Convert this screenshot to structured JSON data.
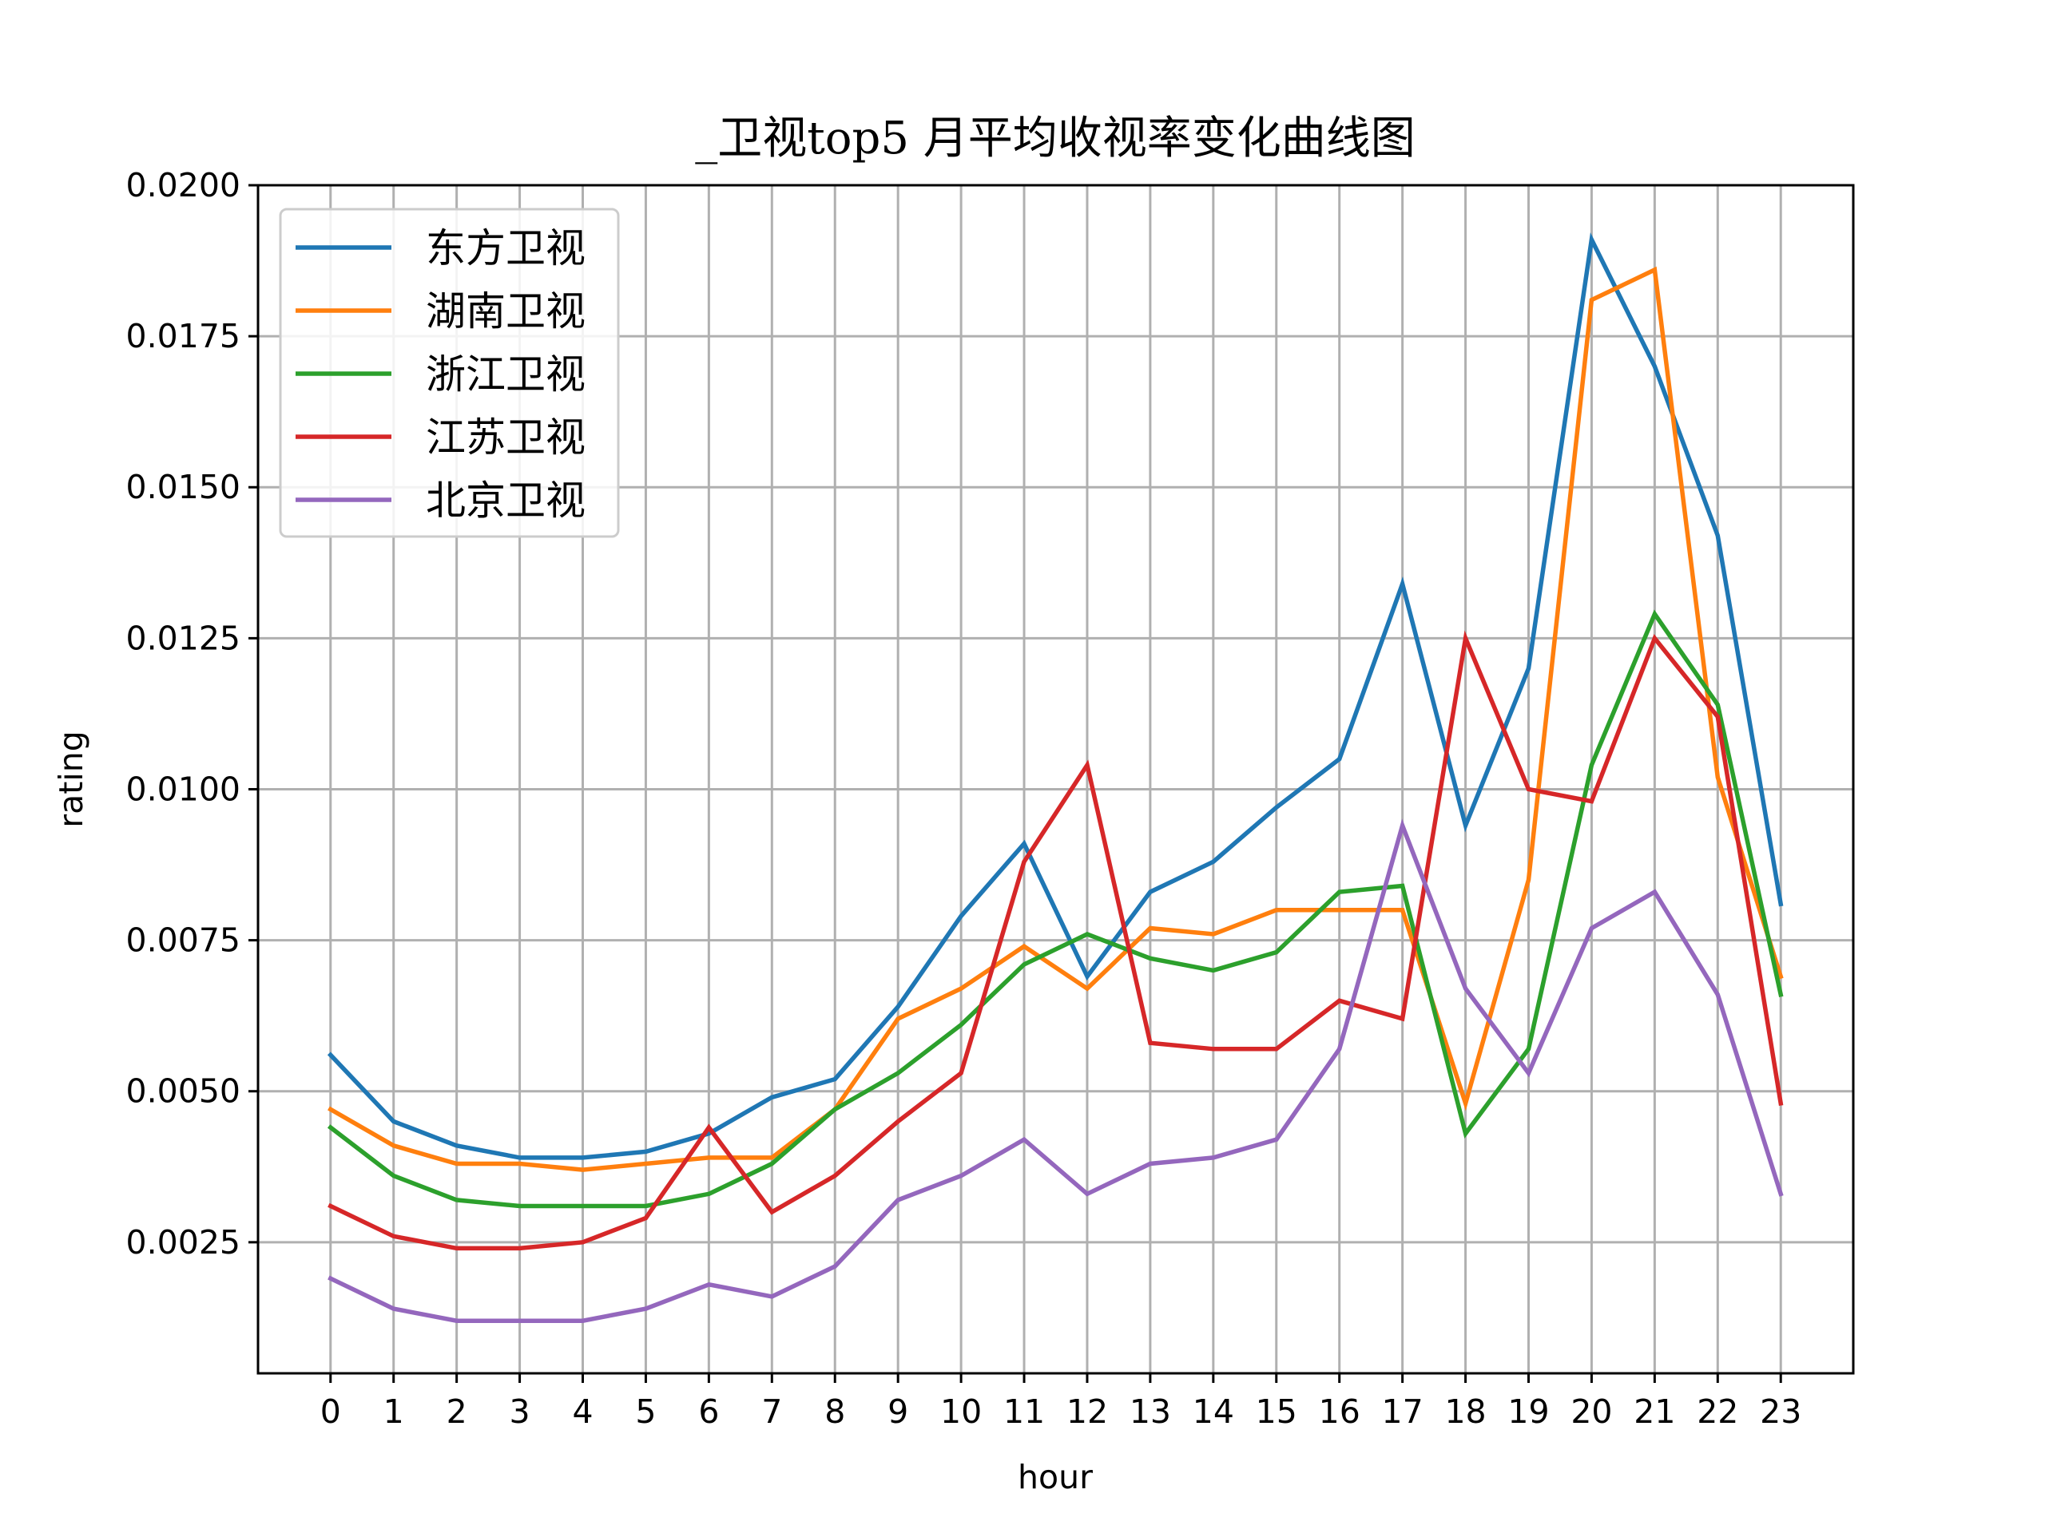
{
  "chart_data": {
    "type": "line",
    "title": "_卫视top5 月平均收视率变化曲线图",
    "xlabel": "hour",
    "ylabel": "rating",
    "x": [
      0,
      1,
      2,
      3,
      4,
      5,
      6,
      7,
      8,
      9,
      10,
      11,
      12,
      13,
      14,
      15,
      16,
      17,
      18,
      19,
      20,
      21,
      22,
      23
    ],
    "x_tick_labels": [
      "0",
      "1",
      "2",
      "3",
      "4",
      "5",
      "6",
      "7",
      "8",
      "9",
      "10",
      "11",
      "12",
      "13",
      "14",
      "15",
      "16",
      "17",
      "18",
      "19",
      "20",
      "21",
      "22",
      "23"
    ],
    "y_ticks": [
      0.0025,
      0.005,
      0.0075,
      0.01,
      0.0125,
      0.015,
      0.0175,
      0.02
    ],
    "y_tick_labels": [
      "0.0025",
      "0.0050",
      "0.0075",
      "0.0100",
      "0.0125",
      "0.0150",
      "0.0175",
      "0.0200"
    ],
    "xlim": [
      -1.15,
      24.15
    ],
    "ylim": [
      0.00033,
      0.02
    ],
    "grid": true,
    "legend_position": "upper-left",
    "series": [
      {
        "name": "东方卫视",
        "color": "#1f77b4",
        "values": [
          0.0056,
          0.0045,
          0.0041,
          0.0039,
          0.0039,
          0.004,
          0.0043,
          0.0049,
          0.0052,
          0.0064,
          0.0079,
          0.0091,
          0.0069,
          0.0083,
          0.0088,
          0.0097,
          0.0105,
          0.0134,
          0.0094,
          0.012,
          0.0191,
          0.017,
          0.0142,
          0.0081
        ]
      },
      {
        "name": "湖南卫视",
        "color": "#ff7f0e",
        "values": [
          0.0047,
          0.0041,
          0.0038,
          0.0038,
          0.0037,
          0.0038,
          0.0039,
          0.0039,
          0.0047,
          0.0062,
          0.0067,
          0.0074,
          0.0067,
          0.0077,
          0.0076,
          0.008,
          0.008,
          0.008,
          0.0048,
          0.0085,
          0.0181,
          0.0186,
          0.0102,
          0.0069
        ]
      },
      {
        "name": "浙江卫视",
        "color": "#2ca02c",
        "values": [
          0.0044,
          0.0036,
          0.0032,
          0.0031,
          0.0031,
          0.0031,
          0.0033,
          0.0038,
          0.0047,
          0.0053,
          0.0061,
          0.0071,
          0.0076,
          0.0072,
          0.007,
          0.0073,
          0.0083,
          0.0084,
          0.0043,
          0.0057,
          0.0104,
          0.0129,
          0.0114,
          0.0066
        ]
      },
      {
        "name": "江苏卫视",
        "color": "#d62728",
        "values": [
          0.0031,
          0.0026,
          0.0024,
          0.0024,
          0.0025,
          0.0029,
          0.0044,
          0.003,
          0.0036,
          0.0045,
          0.0053,
          0.0088,
          0.0104,
          0.0058,
          0.0057,
          0.0057,
          0.0065,
          0.0062,
          0.0125,
          0.01,
          0.0098,
          0.0125,
          0.0112,
          0.0048
        ]
      },
      {
        "name": "北京卫视",
        "color": "#9467bd",
        "values": [
          0.0019,
          0.0014,
          0.0012,
          0.0012,
          0.0012,
          0.0014,
          0.0018,
          0.0016,
          0.0021,
          0.0032,
          0.0036,
          0.0042,
          0.0033,
          0.0038,
          0.0039,
          0.0042,
          0.0057,
          0.0094,
          0.0067,
          0.0053,
          0.0077,
          0.0083,
          0.0066,
          0.0033
        ]
      }
    ]
  }
}
